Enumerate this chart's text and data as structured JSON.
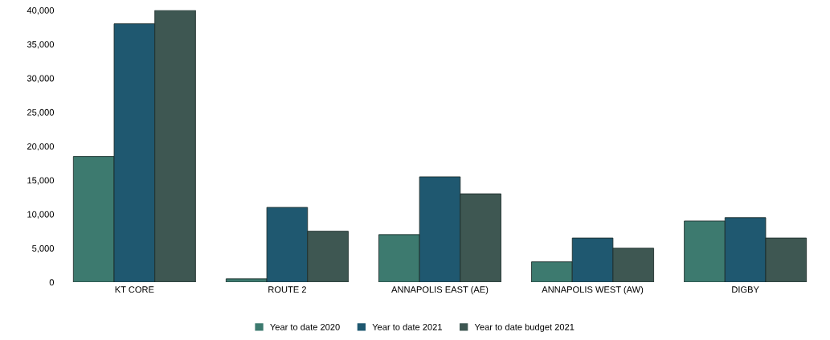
{
  "chart_data": {
    "type": "bar",
    "categories": [
      "KT CORE",
      "ROUTE 2",
      "ANNAPOLIS EAST (AE)",
      "ANNAPOLIS WEST (AW)",
      "DIGBY"
    ],
    "series": [
      {
        "name": "Year to date 2020",
        "color": "#3d7a6f",
        "values": [
          18500,
          500,
          7000,
          3000,
          9000
        ]
      },
      {
        "name": "Year to date 2021",
        "color": "#1f5870",
        "values": [
          38000,
          11000,
          15500,
          6500,
          9500
        ]
      },
      {
        "name": "Year to date budget 2021",
        "color": "#3e5752",
        "values": [
          40000,
          7500,
          13000,
          5000,
          6500
        ]
      }
    ],
    "ylim": [
      0,
      40000
    ],
    "yticks": [
      {
        "value": 0,
        "label": "0"
      },
      {
        "value": 5000,
        "label": "5,000"
      },
      {
        "value": 10000,
        "label": "10,000"
      },
      {
        "value": 15000,
        "label": "15,000"
      },
      {
        "value": 20000,
        "label": "20,000"
      },
      {
        "value": 25000,
        "label": "25,000"
      },
      {
        "value": 30000,
        "label": "30,000"
      },
      {
        "value": 35000,
        "label": "35,000"
      },
      {
        "value": 40000,
        "label": "40,000"
      }
    ],
    "grid": false,
    "legend": "bottom"
  }
}
